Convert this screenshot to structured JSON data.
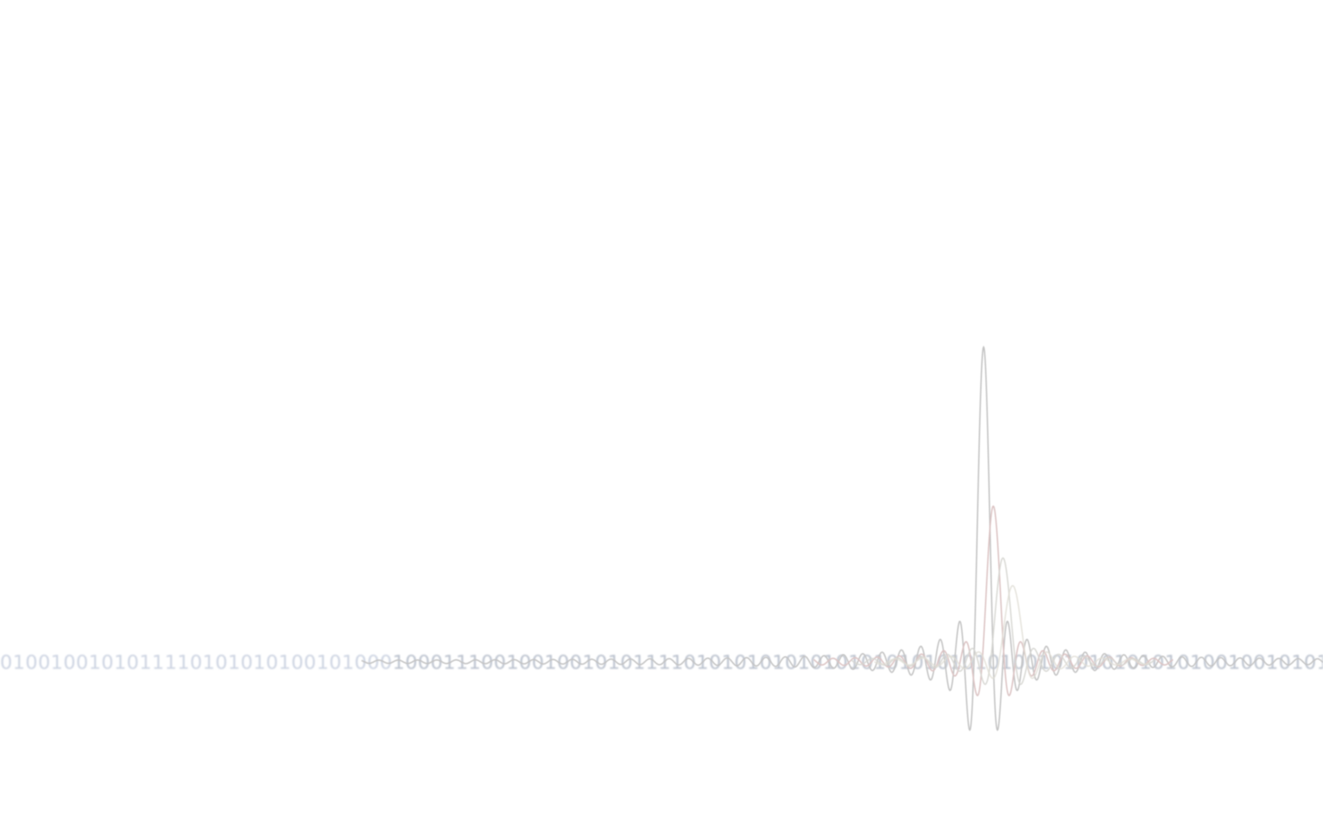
{
  "binary": {
    "left_text": "0100100101011110101010100101000",
    "right_text": "1000111001001001010111101010101010101010101010101001010101010101001001010101010100100100100101010"
  },
  "waves": {
    "colors": [
      "#c4c4c4",
      "#dcc4c4",
      "#d6d6d2",
      "#e0ddd4"
    ]
  },
  "colors": {
    "background": "#ffffff",
    "binary_light": "#cdd4e2",
    "binary_dark": "#bcc3cf"
  }
}
